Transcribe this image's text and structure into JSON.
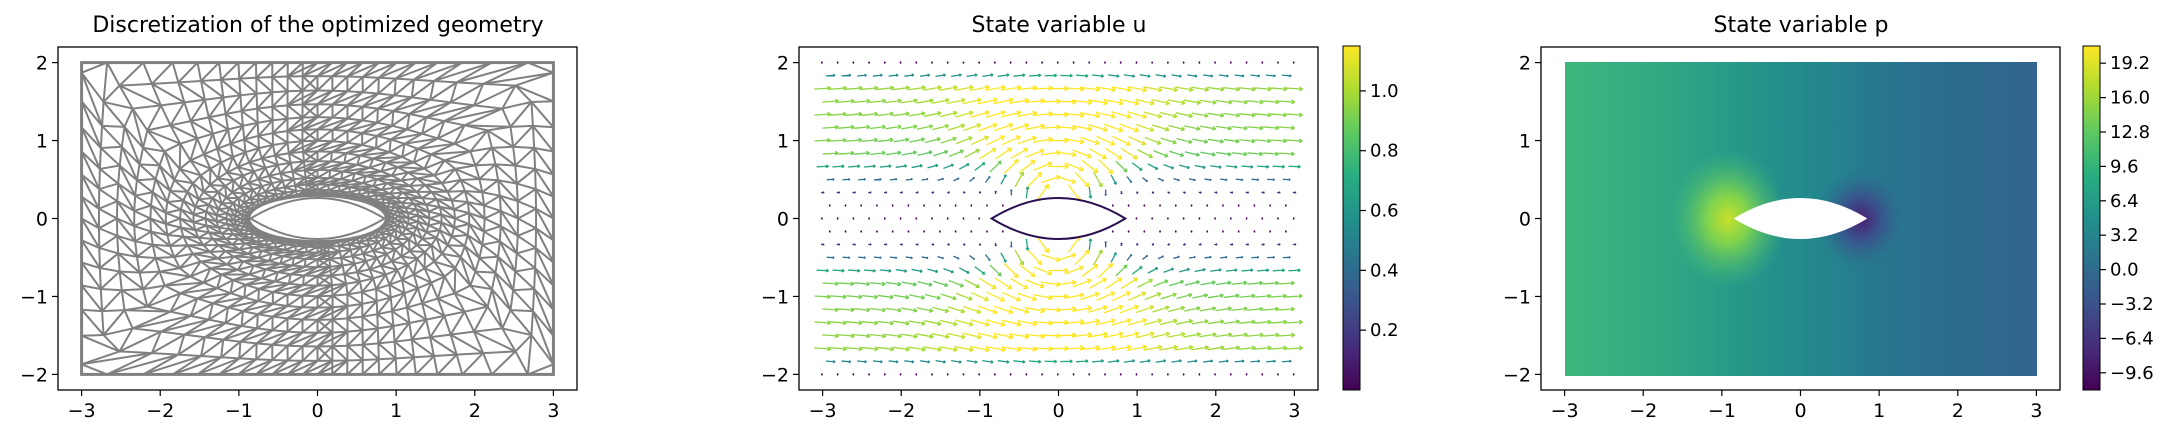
{
  "chart_data": [
    {
      "type": "mesh",
      "title": "Discretization of the optimized geometry",
      "xlim": [
        -3.3,
        3.3
      ],
      "ylim": [
        -2.2,
        2.2
      ],
      "xticks": [
        -3,
        -2,
        -1,
        0,
        1,
        2,
        3
      ],
      "yticks": [
        -2,
        -1,
        0,
        1,
        2
      ],
      "xtick_labels": [
        "−3",
        "−2",
        "−1",
        "0",
        "1",
        "2",
        "3"
      ],
      "ytick_labels": [
        "−2",
        "−1",
        "0",
        "1",
        "2"
      ],
      "domain": {
        "x": [
          -3,
          3
        ],
        "y": [
          -2,
          2
        ]
      },
      "obstacle": {
        "shape": "lens",
        "x": [
          -0.85,
          0.85
        ],
        "half_height": 0.27
      },
      "mesh_color": "#808080"
    },
    {
      "type": "quiver",
      "title": "State variable u",
      "xlim": [
        -3.3,
        3.3
      ],
      "ylim": [
        -2.2,
        2.2
      ],
      "xticks": [
        -3,
        -2,
        -1,
        0,
        1,
        2,
        3
      ],
      "yticks": [
        -2,
        -1,
        0,
        1,
        2
      ],
      "xtick_labels": [
        "−3",
        "−2",
        "−1",
        "0",
        "1",
        "2",
        "3"
      ],
      "ytick_labels": [
        "−2",
        "−1",
        "0",
        "1",
        "2"
      ],
      "colormap": "viridis",
      "color_range": [
        0.0,
        1.15
      ],
      "colorbar_ticks": [
        0.2,
        0.4,
        0.6,
        0.8,
        1.0
      ],
      "colorbar_tick_labels": [
        "0.2",
        "0.4",
        "0.6",
        "0.8",
        "1.0"
      ],
      "obstacle": {
        "shape": "lens",
        "x": [
          -0.85,
          0.85
        ],
        "half_height": 0.27
      }
    },
    {
      "type": "heatmap",
      "title": "State variable p",
      "xlim": [
        -3.3,
        3.3
      ],
      "ylim": [
        -2.2,
        2.2
      ],
      "xticks": [
        -3,
        -2,
        -1,
        0,
        1,
        2,
        3
      ],
      "yticks": [
        -2,
        -1,
        0,
        1,
        2
      ],
      "xtick_labels": [
        "−3",
        "−2",
        "−1",
        "0",
        "1",
        "2",
        "3"
      ],
      "ytick_labels": [
        "−2",
        "−1",
        "0",
        "1",
        "2"
      ],
      "colormap": "viridis",
      "color_range": [
        -11.2,
        20.8
      ],
      "colorbar_ticks": [
        -9.6,
        -6.4,
        -3.2,
        0.0,
        3.2,
        6.4,
        9.6,
        12.8,
        16.0,
        19.2
      ],
      "colorbar_tick_labels": [
        "−9.6",
        "−6.4",
        "−3.2",
        "0.0",
        "3.2",
        "6.4",
        "9.6",
        "12.8",
        "16.0",
        "19.2"
      ],
      "obstacle": {
        "shape": "lens",
        "x": [
          -0.85,
          0.85
        ],
        "half_height": 0.27
      }
    }
  ]
}
